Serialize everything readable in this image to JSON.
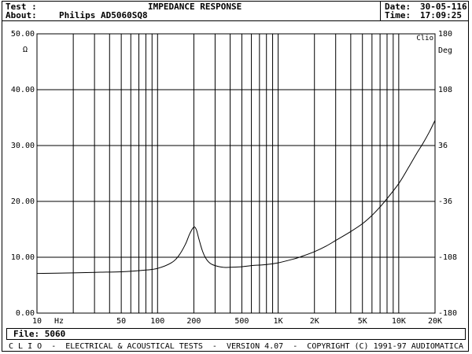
{
  "header": {
    "test_label": "Test :",
    "test_title": "IMPEDANCE RESPONSE",
    "about_label": "About:",
    "about_value": "Philips AD5060SQ8",
    "date_label": "Date:",
    "date_value": "30-05-116",
    "time_label": "Time:",
    "time_value": "17:09:25"
  },
  "file": {
    "label": "File:",
    "value": "5060"
  },
  "footer": {
    "text": "C L I O  -  ELECTRICAL & ACOUSTICAL TESTS  -  VERSION 4.07  -  COPYRIGHT (C) 1991-97 AUDIOMATICA"
  },
  "colors": {
    "background": "#ffffff",
    "ink": "#000000"
  },
  "chart_data": {
    "type": "line",
    "x_scale": "log",
    "xlim": [
      10,
      20000
    ],
    "ylim": [
      0,
      50
    ],
    "y2lim": [
      -180,
      180
    ],
    "xlabel": "Hz",
    "ylabel": "Ω",
    "y2label": "Deg",
    "corner_label": "Clio",
    "grid": true,
    "x_tick_labels": [
      {
        "value": 10,
        "label": "10"
      },
      {
        "value": 50,
        "label": "50"
      },
      {
        "value": 100,
        "label": "100"
      },
      {
        "value": 200,
        "label": "200"
      },
      {
        "value": 500,
        "label": "500"
      },
      {
        "value": 1000,
        "label": "1K"
      },
      {
        "value": 2000,
        "label": "2K"
      },
      {
        "value": 5000,
        "label": "5K"
      },
      {
        "value": 10000,
        "label": "10K"
      },
      {
        "value": 20000,
        "label": "20K"
      }
    ],
    "y_tick_labels": [
      "0.00",
      "10.00",
      "20.00",
      "30.00",
      "40.00",
      "50.00"
    ],
    "y2_tick_labels": [
      "-180",
      "-108",
      "-36",
      "36",
      "108",
      "180"
    ],
    "series": [
      {
        "x": [
          10,
          20,
          30,
          50,
          80,
          100,
          130,
          150,
          170,
          185,
          200,
          210,
          220,
          235,
          250,
          270,
          300,
          350,
          400,
          500,
          600,
          800,
          1000,
          1300,
          1500,
          2000,
          2500,
          3000,
          4000,
          5000,
          6000,
          7000,
          8000,
          10000,
          12000,
          14000,
          16000,
          18000,
          20000
        ],
        "y": [
          7.1,
          7.2,
          7.3,
          7.4,
          7.7,
          8.0,
          9.0,
          10.3,
          12.3,
          14.2,
          15.4,
          14.9,
          13.3,
          11.2,
          9.9,
          9.0,
          8.5,
          8.2,
          8.2,
          8.3,
          8.5,
          8.7,
          9.0,
          9.6,
          10.0,
          11.0,
          12.0,
          13.0,
          14.6,
          16.0,
          17.5,
          19.0,
          20.5,
          23.2,
          26.0,
          28.5,
          30.5,
          32.5,
          34.5
        ]
      }
    ]
  }
}
